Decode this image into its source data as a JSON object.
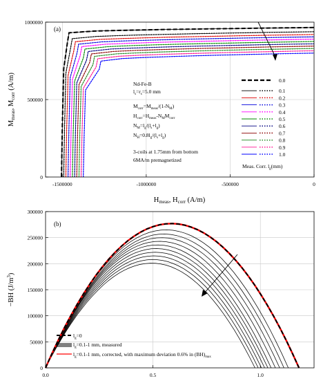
{
  "chart_data": [
    {
      "type": "line",
      "panel_label": "(a)",
      "xlabel": "H_meas, H_corr (A/m)",
      "ylabel": "M_meas, M_corr (A/m)",
      "xlim": [
        -1600000,
        0
      ],
      "ylim": [
        0,
        1000000
      ],
      "x_ticks": [
        -1500000,
        -1000000,
        -500000,
        0
      ],
      "x_tick_labels": [
        "-1500000",
        "-1000000",
        "-500000",
        "0"
      ],
      "y_ticks": [
        0,
        500000,
        1000000
      ],
      "y_tick_labels": [
        "0",
        "500000",
        "1000000"
      ],
      "grid": true,
      "annotations": [
        "Nd-Fe-B",
        "l_s=r_s=5.0 mm",
        "M_corr=M_meas/(1-N_M)",
        "H_corr=H_meas-N_M M_corr",
        "N_M=l_g/(l_s+l_g)",
        "N_H=0.8l_g/(l_s+l_g)",
        "3-coils at 1.75mm from bottom",
        "6MA/m premagnetized"
      ],
      "legend_title": "Meas. Corr. l_g(mm)",
      "legend_placement": "center-right",
      "series": [
        {
          "name": "0.0",
          "color": "#000000",
          "style": "dashed",
          "Ms": 965000,
          "slope": 0.039,
          "Hc": -1500000
        },
        {
          "name": "0.1",
          "color": "#000000",
          "style": "dotted",
          "Ms": 938000,
          "slope": 0.053,
          "Hc": -1487000
        },
        {
          "name": "0.2",
          "color": "#dd0000",
          "style": "dotted",
          "Ms": 920000,
          "slope": 0.056,
          "Hc": -1474000
        },
        {
          "name": "0.3",
          "color": "#0000dd",
          "style": "dotted",
          "Ms": 905000,
          "slope": 0.058,
          "Hc": -1461000
        },
        {
          "name": "0.4",
          "color": "#ff00ff",
          "style": "dotted",
          "Ms": 890000,
          "slope": 0.06,
          "Hc": -1448000
        },
        {
          "name": "0.5",
          "color": "#008800",
          "style": "dotted",
          "Ms": 875000,
          "slope": 0.062,
          "Hc": -1435000
        },
        {
          "name": "0.6",
          "color": "#000080",
          "style": "dotted",
          "Ms": 860000,
          "slope": 0.064,
          "Hc": -1422000
        },
        {
          "name": "0.7",
          "color": "#8b0000",
          "style": "dotted",
          "Ms": 845000,
          "slope": 0.066,
          "Hc": -1409000
        },
        {
          "name": "0.8",
          "color": "#228b22",
          "style": "dotted",
          "Ms": 830000,
          "slope": 0.068,
          "Hc": -1396000
        },
        {
          "name": "0.9",
          "color": "#ff1493",
          "style": "dotted",
          "Ms": 815000,
          "slope": 0.07,
          "Hc": -1383000
        },
        {
          "name": "1.0",
          "color": "#0000ff",
          "style": "dotted",
          "Ms": 800000,
          "slope": 0.072,
          "Hc": -1370000
        }
      ]
    },
    {
      "type": "line",
      "panel_label": "(b)",
      "xlabel": "",
      "ylabel": "−BH (J/m³)",
      "xlim": [
        0,
        1.25
      ],
      "ylim": [
        0,
        300000
      ],
      "x_ticks": [
        0,
        0.5,
        1.0
      ],
      "x_tick_labels": [
        "0.0",
        "0.5",
        "1.0"
      ],
      "y_ticks": [
        0,
        50000,
        100000,
        150000,
        200000,
        250000,
        300000
      ],
      "y_tick_labels": [
        "0",
        "50000",
        "100000",
        "150000",
        "200000",
        "250000",
        "300000"
      ],
      "grid": true,
      "legend_placement": "bottom-left",
      "legend": [
        {
          "label": "l_g=0",
          "color": "#000000",
          "style": "dashed"
        },
        {
          "label": "l_g=0.1-1 mm, measured",
          "color": "#000000",
          "style": "solid"
        },
        {
          "label": "l_g=0.1-1 mm, corrected, with maximum deviation 0.6% in (BH)_max",
          "color": "#ff0000",
          "style": "solid"
        }
      ],
      "series": [
        {
          "name": "0.0",
          "peak_x": 0.585,
          "peak_y": 277000,
          "x_end": 1.18,
          "corrected": true
        },
        {
          "name": "0.1",
          "peak_x": 0.56,
          "peak_y": 265000,
          "x_end": 1.13
        },
        {
          "name": "0.2",
          "peak_x": 0.55,
          "peak_y": 257000,
          "x_end": 1.11
        },
        {
          "name": "0.3",
          "peak_x": 0.54,
          "peak_y": 250000,
          "x_end": 1.09
        },
        {
          "name": "0.4",
          "peak_x": 0.53,
          "peak_y": 243000,
          "x_end": 1.07
        },
        {
          "name": "0.5",
          "peak_x": 0.52,
          "peak_y": 236000,
          "x_end": 1.05
        },
        {
          "name": "0.6",
          "peak_x": 0.515,
          "peak_y": 229000,
          "x_end": 1.035
        },
        {
          "name": "0.7",
          "peak_x": 0.51,
          "peak_y": 222000,
          "x_end": 1.02
        },
        {
          "name": "0.8",
          "peak_x": 0.505,
          "peak_y": 215000,
          "x_end": 1.005
        },
        {
          "name": "0.9",
          "peak_x": 0.5,
          "peak_y": 208000,
          "x_end": 0.99
        },
        {
          "name": "1.0",
          "peak_x": 0.495,
          "peak_y": 201000,
          "x_end": 0.975
        }
      ]
    }
  ]
}
